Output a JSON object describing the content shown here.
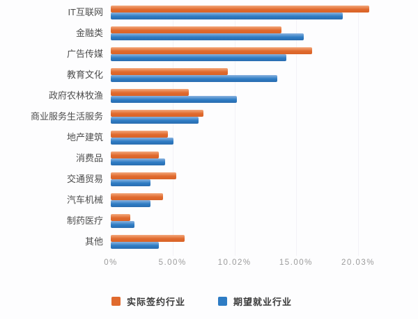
{
  "chart_data": {
    "type": "bar",
    "orientation": "horizontal",
    "title": "",
    "xlabel": "",
    "ylabel": "",
    "grid": true,
    "legend_position": "bottom",
    "axis_range": [
      0,
      22
    ],
    "categories": [
      "IT互联网",
      "金融类",
      "广告传媒",
      "教育文化",
      "政府农林牧渔",
      "商业服务生活服务",
      "地产建筑",
      "消费品",
      "交通贸易",
      "汽车机械",
      "制药医疗",
      "其他"
    ],
    "series": [
      {
        "name": "实际签约行业",
        "color": "#e06a2e",
        "color_light": "#f3a87c",
        "color_dark": "#d96327",
        "values": [
          20.9,
          13.8,
          16.3,
          9.5,
          6.3,
          7.5,
          4.6,
          3.9,
          5.3,
          4.2,
          1.6,
          6.0
        ]
      },
      {
        "name": "期望就业行业",
        "color": "#2e7cc4",
        "color_light": "#8ab3e0",
        "color_dark": "#2a6cb0",
        "values": [
          18.8,
          15.6,
          14.2,
          13.5,
          10.2,
          7.1,
          5.1,
          4.4,
          3.2,
          3.2,
          1.9,
          3.9
        ]
      }
    ],
    "xticks": [
      {
        "label": "0%",
        "value": 0
      },
      {
        "label": "5.00%",
        "value": 5.0
      },
      {
        "label": "10.02%",
        "value": 10.02
      },
      {
        "label": "15.00%",
        "value": 15.0
      },
      {
        "label": "20.03%",
        "value": 20.03
      }
    ],
    "value_unit": "%"
  }
}
